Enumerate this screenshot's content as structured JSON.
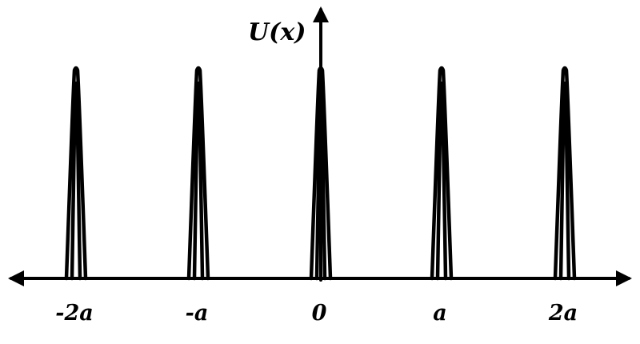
{
  "y_axis_label": "U(x)",
  "peaks": [
    {
      "label": "-2a"
    },
    {
      "label": "-a"
    },
    {
      "label": "0"
    },
    {
      "label": "a"
    },
    {
      "label": "2a"
    }
  ],
  "color": "#000000"
}
